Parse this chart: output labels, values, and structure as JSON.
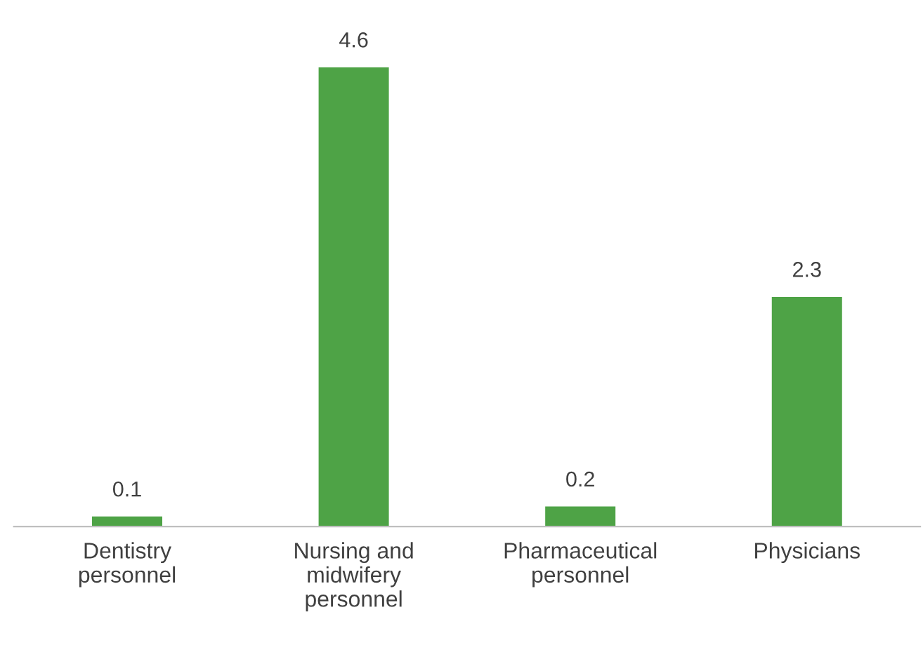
{
  "chart_data": {
    "type": "bar",
    "categories": [
      "Dentistry personnel",
      "Nursing and midwifery personnel",
      "Pharmaceutical personnel",
      "Physicians"
    ],
    "values": [
      0.1,
      4.6,
      0.2,
      2.3
    ],
    "color": "#4ea346",
    "data_labels": true,
    "grid": false,
    "legend": false
  }
}
